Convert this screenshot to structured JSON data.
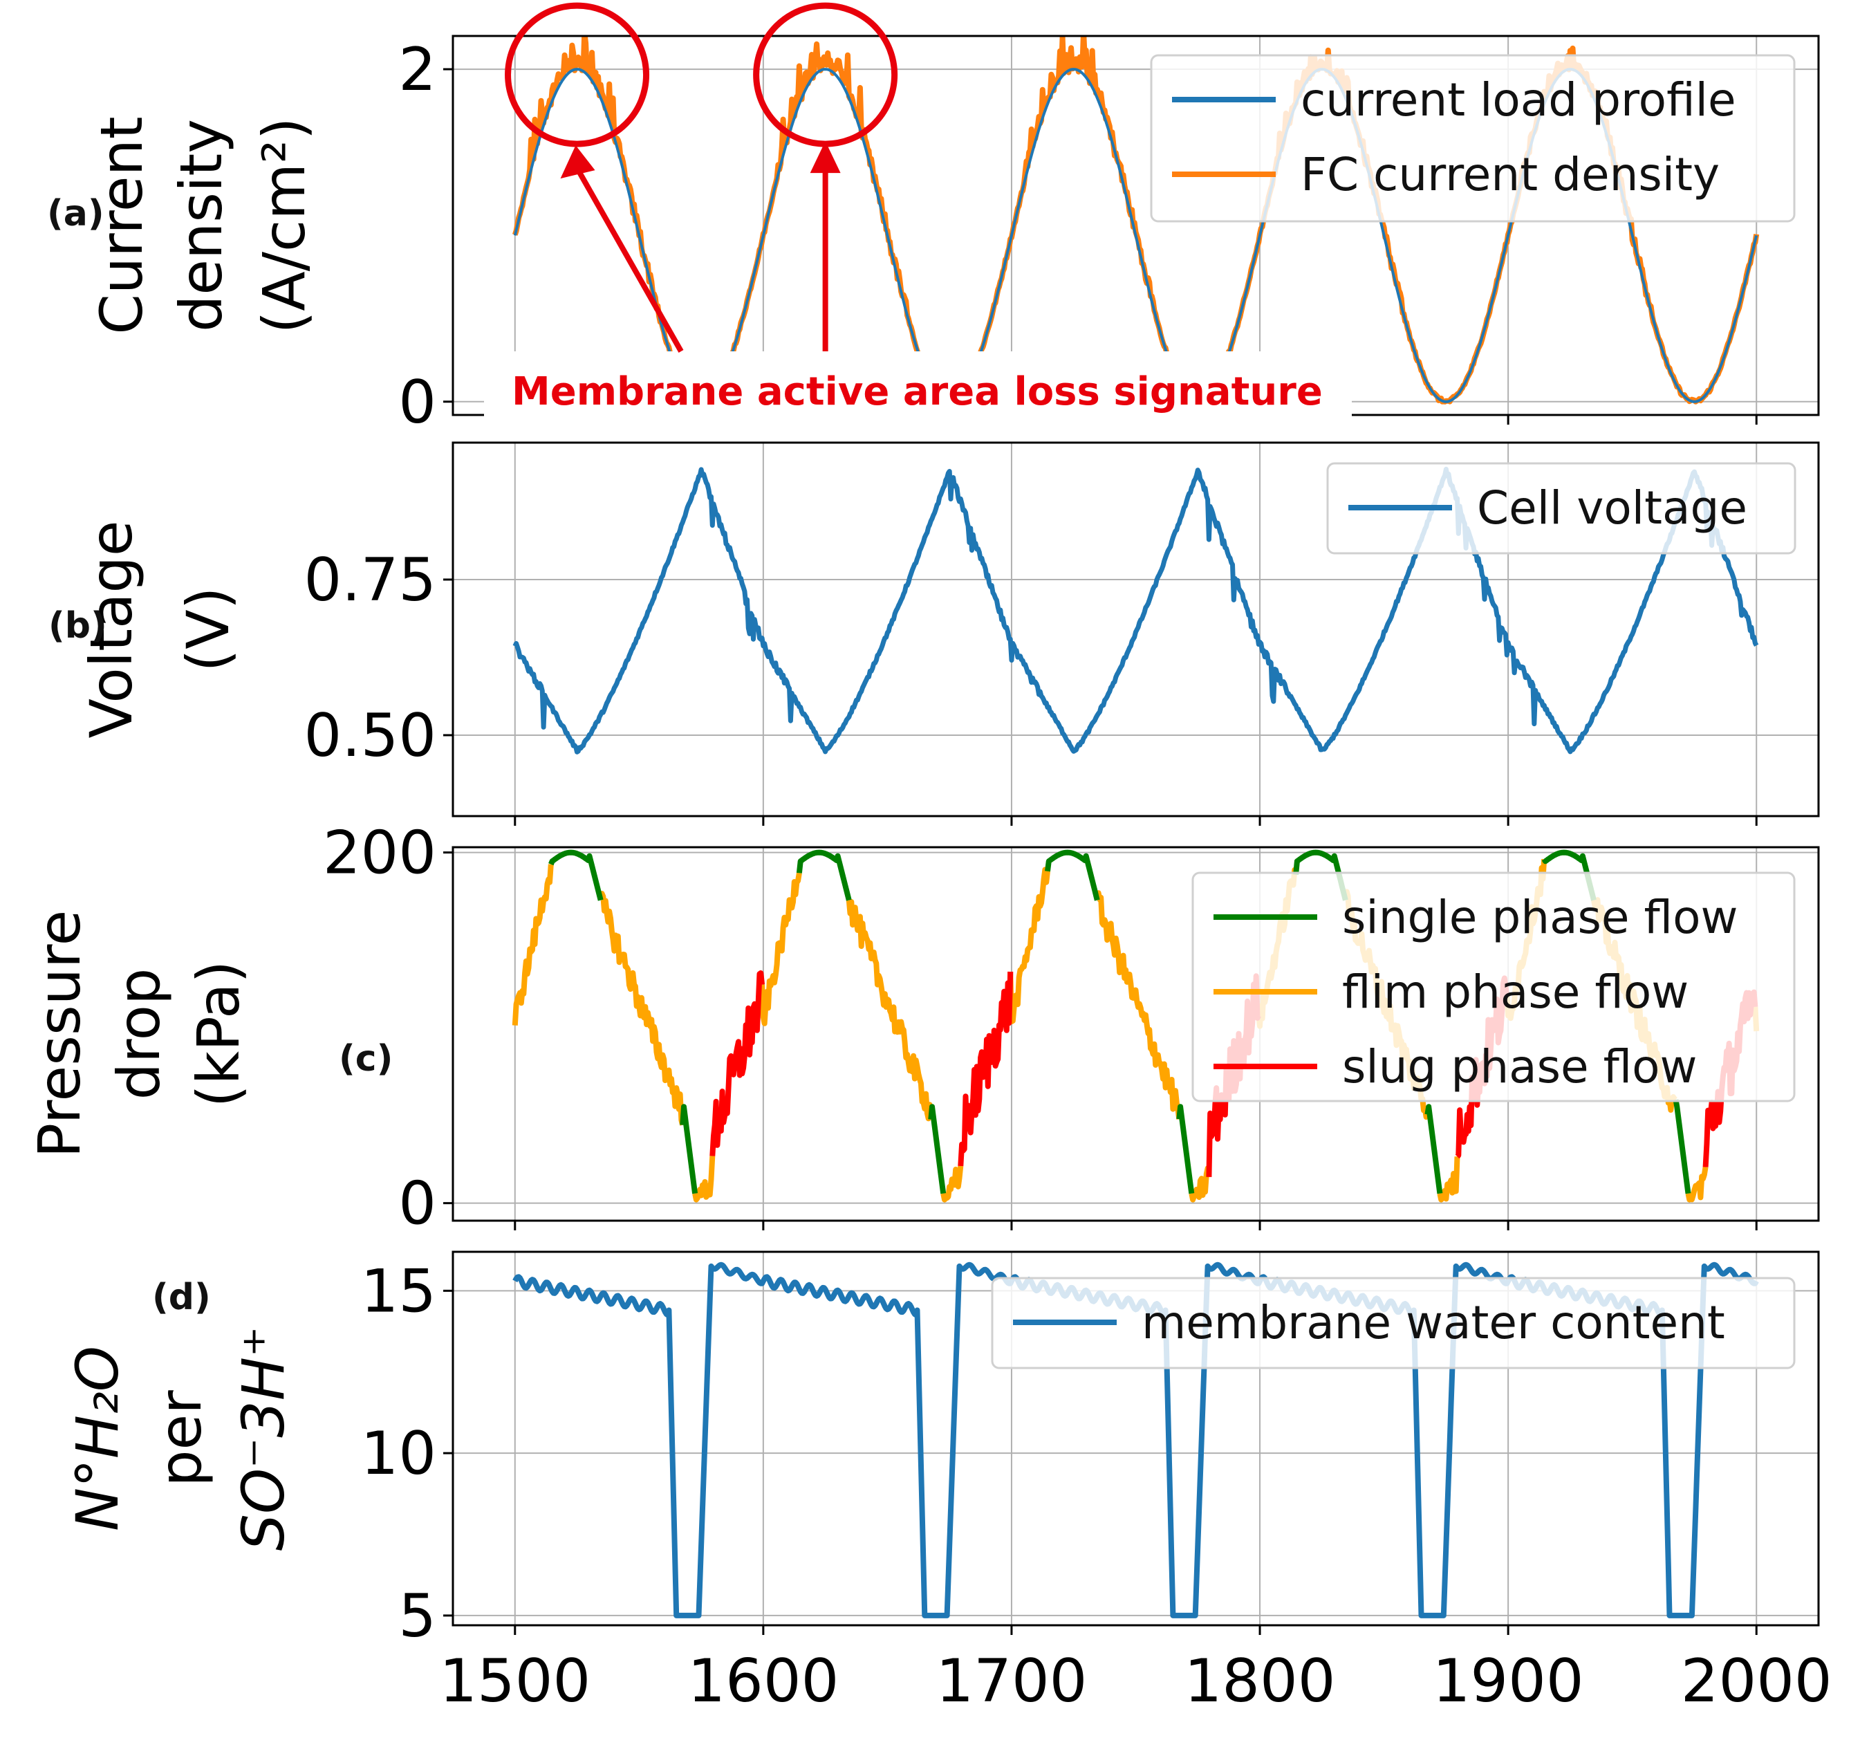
{
  "chart_data": [
    {
      "id": "a",
      "panel_tag": "(a)",
      "type": "line",
      "ylabel_lines": [
        "Current",
        "density",
        "(A/cm²)"
      ],
      "xlim": [
        1475,
        2025
      ],
      "ylim": [
        -0.08,
        2.2
      ],
      "yticks": [
        {
          "value": 0,
          "label": "0"
        },
        {
          "value": 2,
          "label": "2"
        }
      ],
      "grid": true,
      "legend_position": "top-right",
      "series": [
        {
          "name": "current load profile",
          "color": "#1f77b4",
          "kind": "sine",
          "mean": 1.0,
          "amp": 1.0,
          "period": 100,
          "phase_x": 1500
        },
        {
          "name": "FC current density",
          "color": "#ff7f0e",
          "kind": "sine_noisy",
          "mean": 1.0,
          "amp": 1.0,
          "period": 100,
          "phase_x": 1500
        }
      ],
      "annotation": {
        "text": "Membrane active area loss signature",
        "circles_at": [
          [
            1525,
            2.0
          ],
          [
            1625,
            2.0
          ]
        ]
      }
    },
    {
      "id": "b",
      "panel_tag": "(b)",
      "type": "line",
      "ylabel_lines": [
        "Voltage",
        "(V)"
      ],
      "xlim": [
        1475,
        2025
      ],
      "ylim": [
        0.37,
        0.97
      ],
      "yticks": [
        {
          "value": 0.5,
          "label": "0.50"
        },
        {
          "value": 0.75,
          "label": "0.75"
        }
      ],
      "grid": true,
      "legend_position": "top-right",
      "series": [
        {
          "name": "Cell voltage",
          "color": "#1f77b4",
          "kind": "voltage",
          "min": 0.475,
          "max": 0.925,
          "start": 0.645,
          "period": 100
        }
      ]
    },
    {
      "id": "c",
      "panel_tag": "(c)",
      "type": "line",
      "ylabel_lines": [
        "Pressure",
        "drop",
        "(kPa)"
      ],
      "xlim": [
        1475,
        2025
      ],
      "ylim": [
        -10,
        203
      ],
      "yticks": [
        {
          "value": 0,
          "label": "0"
        },
        {
          "value": 200,
          "label": "200"
        }
      ],
      "grid": true,
      "legend_position": "top-right",
      "series": [
        {
          "name": "single phase flow",
          "color": "#008000"
        },
        {
          "name": "flim phase flow",
          "color": "#ffa500"
        },
        {
          "name": "slug phase flow",
          "color": "#ff0000"
        }
      ]
    },
    {
      "id": "d",
      "panel_tag": "(d)",
      "type": "line",
      "ylabel_lines": [
        "N°H₂O",
        "per",
        "SO⁻3H⁺"
      ],
      "xlabel": "",
      "xlim": [
        1475,
        2025
      ],
      "ylim": [
        4.7,
        16.2
      ],
      "yticks": [
        {
          "value": 5,
          "label": "5"
        },
        {
          "value": 10,
          "label": "10"
        },
        {
          "value": 15,
          "label": "15"
        }
      ],
      "xticks": [
        {
          "value": 1500,
          "label": "1500"
        },
        {
          "value": 1600,
          "label": "1600"
        },
        {
          "value": 1700,
          "label": "1700"
        },
        {
          "value": 1800,
          "label": "1800"
        },
        {
          "value": 1900,
          "label": "1900"
        },
        {
          "value": 2000,
          "label": "2000"
        }
      ],
      "grid": true,
      "legend_position": "top-right",
      "series": [
        {
          "name": "membrane water content",
          "color": "#1f77b4",
          "kind": "water",
          "high": 15.3,
          "low": 5.0,
          "drop_start_offset": 65,
          "drop_end_offset": 77,
          "period": 100
        }
      ]
    }
  ]
}
